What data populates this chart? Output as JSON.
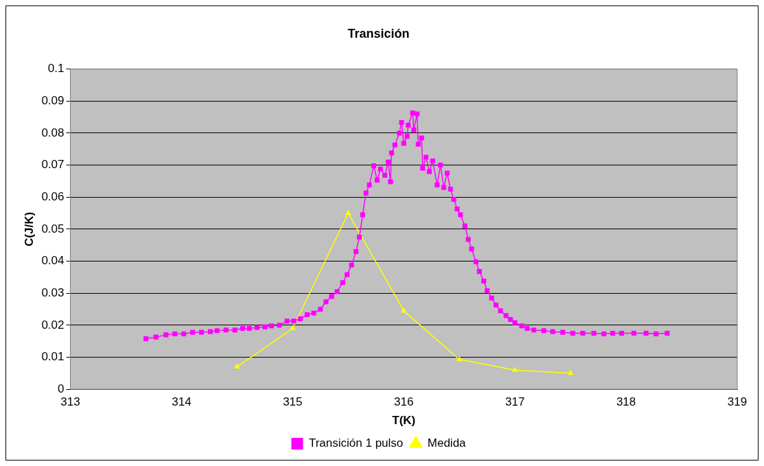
{
  "chart_data": {
    "type": "line",
    "title": "Transición",
    "xlabel": "T(K)",
    "ylabel": "C(J/K)",
    "xlim": [
      313,
      319
    ],
    "xticks": [
      313,
      314,
      315,
      316,
      317,
      318,
      319
    ],
    "ylim": [
      0,
      0.1
    ],
    "yticks": [
      0,
      0.01,
      0.02,
      0.03,
      0.04,
      0.05,
      0.06,
      0.07,
      0.08,
      0.09,
      0.1
    ],
    "grid": "y",
    "legend": "bottom",
    "line_style": "solid",
    "series": [
      {
        "name": "Transición 1 pulso",
        "color": "#ff00ff",
        "marker": "square",
        "x": [
          313.68,
          313.77,
          313.86,
          313.94,
          314.02,
          314.1,
          314.18,
          314.26,
          314.32,
          314.4,
          314.48,
          314.55,
          314.61,
          314.68,
          314.75,
          314.81,
          314.88,
          314.95,
          315.01,
          315.07,
          315.13,
          315.19,
          315.25,
          315.3,
          315.35,
          315.4,
          315.45,
          315.49,
          315.53,
          315.57,
          315.6,
          315.63,
          315.66,
          315.69,
          315.73,
          315.76,
          315.79,
          315.83,
          315.86,
          315.88,
          315.89,
          315.92,
          315.96,
          315.98,
          316.0,
          316.03,
          316.04,
          316.08,
          316.09,
          316.12,
          316.13,
          316.16,
          316.17,
          316.2,
          316.23,
          316.26,
          316.3,
          316.33,
          316.36,
          316.39,
          316.42,
          316.45,
          316.48,
          316.51,
          316.55,
          316.58,
          316.61,
          316.65,
          316.68,
          316.72,
          316.75,
          316.79,
          316.83,
          316.87,
          316.92,
          316.96,
          317.0,
          317.06,
          317.11,
          317.17,
          317.26,
          317.34,
          317.43,
          317.52,
          317.61,
          317.71,
          317.8,
          317.88,
          317.96,
          318.07,
          318.18,
          318.27,
          318.37
        ],
        "values": [
          0.0158,
          0.0163,
          0.017,
          0.0173,
          0.0173,
          0.0178,
          0.0178,
          0.018,
          0.0183,
          0.0185,
          0.0185,
          0.019,
          0.019,
          0.0193,
          0.0195,
          0.0198,
          0.02,
          0.0213,
          0.0213,
          0.022,
          0.0233,
          0.0238,
          0.025,
          0.0273,
          0.029,
          0.0305,
          0.0333,
          0.0358,
          0.0388,
          0.043,
          0.0475,
          0.0545,
          0.0613,
          0.0638,
          0.0698,
          0.0653,
          0.0688,
          0.0668,
          0.071,
          0.0648,
          0.0738,
          0.0763,
          0.08,
          0.0833,
          0.0768,
          0.079,
          0.0825,
          0.0863,
          0.081,
          0.086,
          0.0765,
          0.0785,
          0.069,
          0.0725,
          0.068,
          0.0713,
          0.0638,
          0.07,
          0.063,
          0.0675,
          0.0625,
          0.0593,
          0.0563,
          0.0545,
          0.051,
          0.0468,
          0.0438,
          0.0398,
          0.0368,
          0.0338,
          0.0308,
          0.0285,
          0.0263,
          0.0245,
          0.023,
          0.0218,
          0.0208,
          0.0198,
          0.019,
          0.0185,
          0.0183,
          0.018,
          0.0178,
          0.0175,
          0.0175,
          0.0175,
          0.0173,
          0.0175,
          0.0175,
          0.0175,
          0.0175,
          0.0173,
          0.0175
        ]
      },
      {
        "name": "Medida",
        "color": "#ffff00",
        "marker": "triangle",
        "x": [
          314.5,
          315,
          315.5,
          316,
          316.5,
          317,
          317.5
        ],
        "values": [
          0.007,
          0.019,
          0.055,
          0.0245,
          0.0093,
          0.006,
          0.005
        ]
      }
    ]
  }
}
